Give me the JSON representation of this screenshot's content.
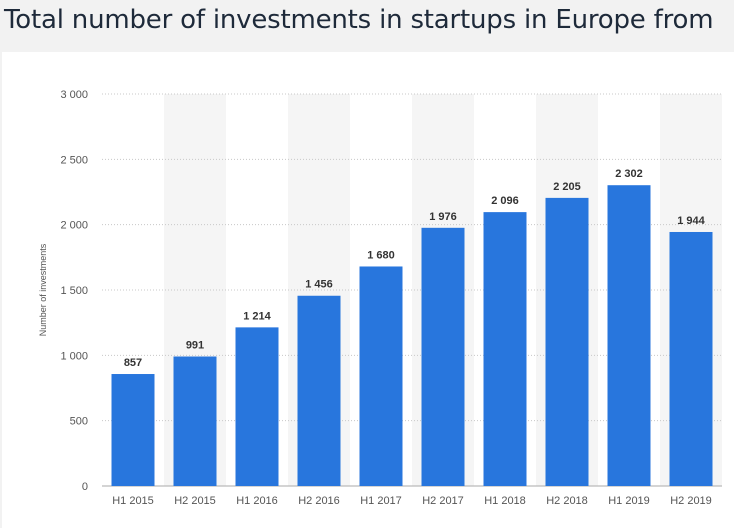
{
  "page": {
    "title": "Total number of investments in startups in Europe from"
  },
  "chart_data": {
    "type": "bar",
    "title": "Total number of investments in startups in Europe from",
    "xlabel": "",
    "ylabel": "Number of investments",
    "categories": [
      "H1 2015",
      "H2 2015",
      "H1 2016",
      "H2 2016",
      "H1 2017",
      "H2 2017",
      "H1 2018",
      "H2 2018",
      "H1 2019",
      "H2 2019"
    ],
    "values": [
      857,
      991,
      1214,
      1456,
      1680,
      1976,
      2096,
      2205,
      2302,
      1944
    ],
    "value_labels": [
      "857",
      "991",
      "1 214",
      "1 456",
      "1 680",
      "1 976",
      "2 096",
      "2 205",
      "2 302",
      "1 944"
    ],
    "ylim": [
      0,
      3000
    ],
    "yticks": [
      0,
      500,
      1000,
      1500,
      2000,
      2500,
      3000
    ],
    "ytick_labels": [
      "0",
      "500",
      "1 000",
      "1 500",
      "2 000",
      "2 500",
      "3 000"
    ],
    "grid": true,
    "bar_color": "#2876dd",
    "band_color": "#f5f5f5"
  }
}
